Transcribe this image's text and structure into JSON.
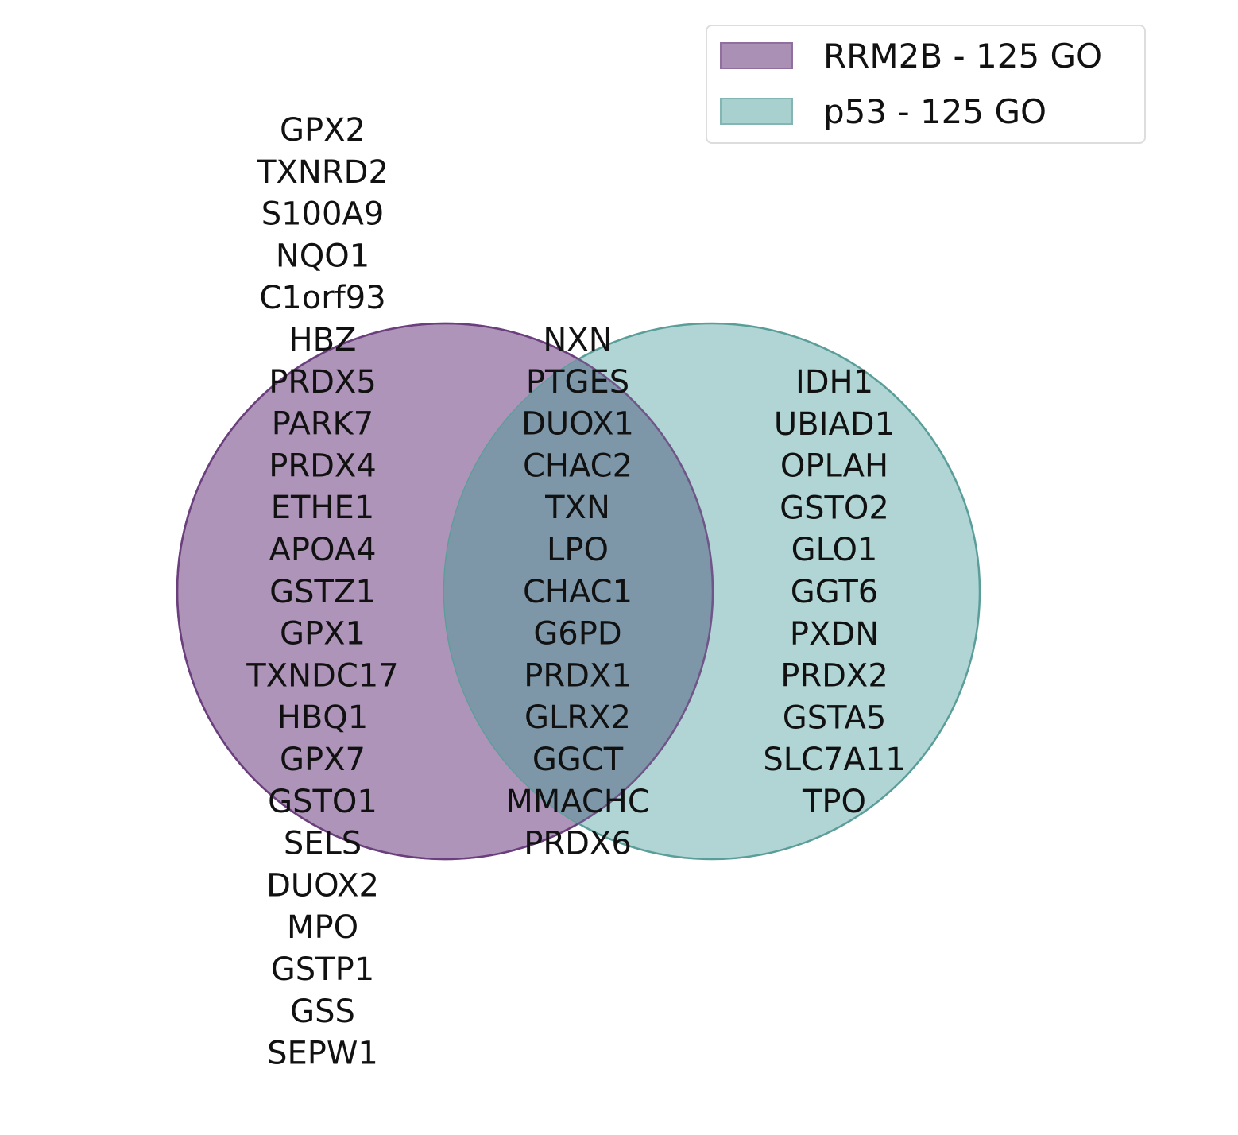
{
  "diagram": {
    "type": "venn2",
    "sets": [
      {
        "name": "RRM2B - 125 GO",
        "fill": "#8e6b9c",
        "stroke": "#6b3f7e"
      },
      {
        "name": "p53 - 125 GO",
        "fill": "#8cc1bf",
        "stroke": "#5a9e99"
      }
    ],
    "intersection_fill": "#7e97a8",
    "regions": {
      "left_only": [
        "GPX2",
        "TXNRD2",
        "S100A9",
        "NQO1",
        "C1orf93",
        "HBZ",
        "PRDX5",
        "PARK7",
        "PRDX4",
        "ETHE1",
        "APOA4",
        "GSTZ1",
        "GPX1",
        "TXNDC17",
        "HBQ1",
        "GPX7",
        "GSTO1",
        "SELS",
        "DUOX2",
        "MPO",
        "GSTP1",
        "GSS",
        "SEPW1"
      ],
      "intersection": [
        "NXN",
        "PTGES",
        "DUOX1",
        "CHAC2",
        "TXN",
        "LPO",
        "CHAC1",
        "G6PD",
        "PRDX1",
        "GLRX2",
        "GGCT",
        "MMACHC",
        "PRDX6"
      ],
      "right_only": [
        "IDH1",
        "UBIAD1",
        "OPLAH",
        "GSTO2",
        "GLO1",
        "GGT6",
        "PXDN",
        "PRDX2",
        "GSTA5",
        "SLC7A11",
        "TPO"
      ]
    }
  }
}
